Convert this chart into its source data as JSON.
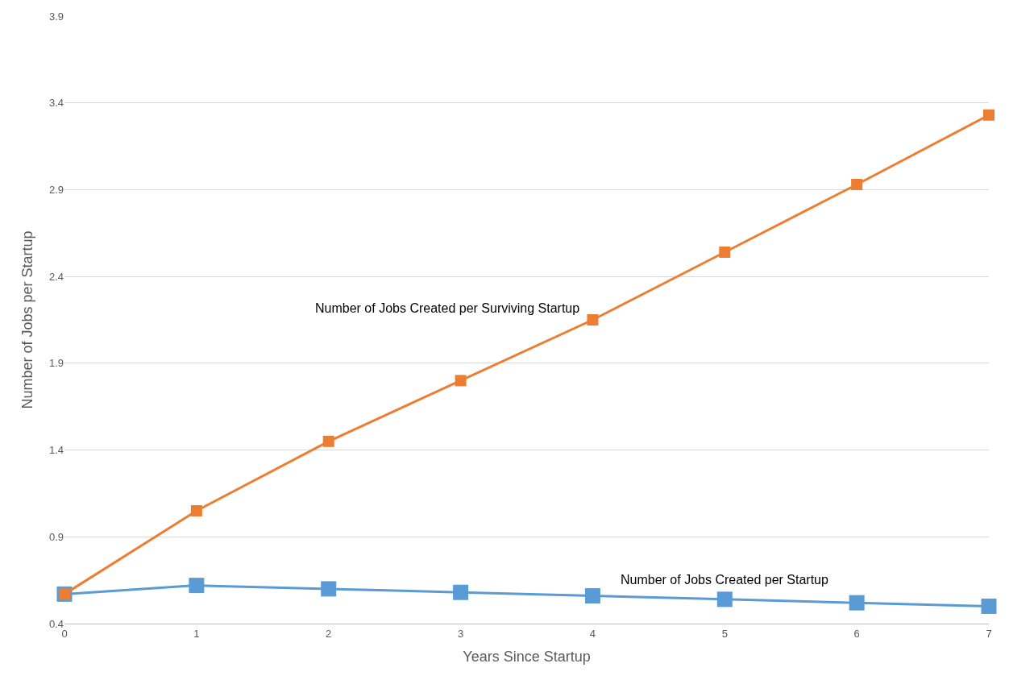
{
  "chart_data": {
    "type": "line",
    "xlabel": "Years Since Startup",
    "ylabel": "Number of Jobs per Startup",
    "x": [
      0,
      1,
      2,
      3,
      4,
      5,
      6,
      7
    ],
    "series": [
      {
        "name": "Number of Jobs Created per Surviving Startup",
        "color": "#ed7d31",
        "values": [
          0.57,
          1.05,
          1.45,
          1.8,
          2.15,
          2.54,
          2.93,
          3.33
        ]
      },
      {
        "name": "Number of Jobs Created per Startup",
        "color": "#5b9bd5",
        "values": [
          0.57,
          0.62,
          0.6,
          0.58,
          0.56,
          0.54,
          0.52,
          0.5
        ]
      }
    ],
    "xlim": [
      0,
      7
    ],
    "xticks": [
      0,
      1,
      2,
      3,
      4,
      5,
      6,
      7
    ],
    "ylim": [
      0.4,
      3.9
    ],
    "yticks": [
      0.4,
      0.9,
      1.4,
      1.9,
      2.4,
      2.9,
      3.4,
      3.9
    ],
    "grid": "y",
    "legend": false,
    "marker": "square",
    "line_style": "solid"
  }
}
